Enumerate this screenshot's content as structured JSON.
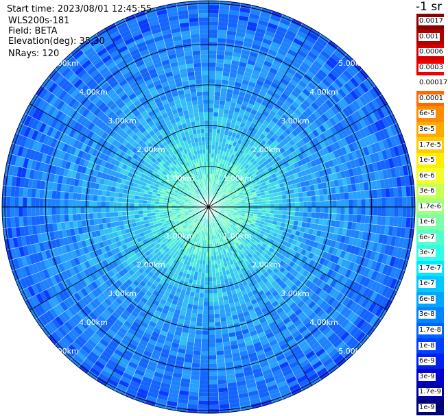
{
  "header": {
    "start_time": "Start time: 2023/08/01 12:45:55",
    "instrument": "WLS200s-181",
    "field": "Field: BETA",
    "elevation": "Elevation(deg): 35.30",
    "nrays": "NRays: 120"
  },
  "units_label": "-1 sr",
  "range_labels": [
    "1.00km",
    "2.00km",
    "3.00km",
    "4.00km",
    "5.00km"
  ],
  "nrays": 120,
  "colorbar": {
    "labels": [
      "0.0017",
      "0.001",
      "0.0006",
      "0.0003",
      "0.00017",
      "0.0001",
      "6e-5",
      "3e-5",
      "1.7e-5",
      "1e-5",
      "6e-6",
      "3e-6",
      "1.7e-6",
      "1e-6",
      "6e-7",
      "3e-7",
      "1.7e-7",
      "1e-7",
      "6e-8",
      "3e-8",
      "1.7e-8",
      "1e-8",
      "6e-9",
      "3e-9",
      "1.7e-9",
      "1e-9"
    ],
    "colors": [
      "#8b0000",
      "#b00000",
      "#d40000",
      "#f00000",
      "#ffffff",
      "#ff6a00",
      "#ff8c00",
      "#ffaa00",
      "#ffcc00",
      "#ffee00",
      "#f2ff2a",
      "#c8ff55",
      "#a4ff7e",
      "#7dffa6",
      "#55ffcc",
      "#2effe8",
      "#00e8ff",
      "#00c8ff",
      "#00a6ff",
      "#0084ff",
      "#0062ff",
      "#0040ff",
      "#0020ee",
      "#0000cc",
      "#0000a0",
      "#000078"
    ]
  }
}
